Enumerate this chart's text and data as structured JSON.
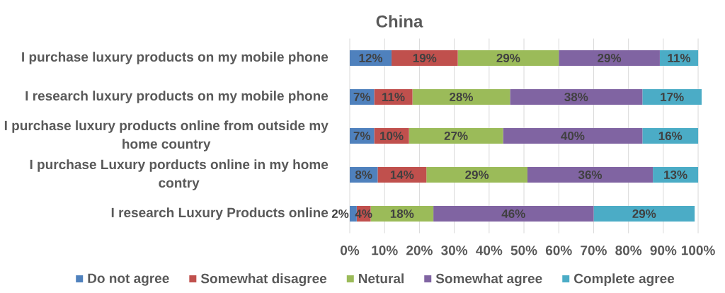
{
  "chart_data": {
    "type": "bar",
    "orientation": "horizontal",
    "stacked": true,
    "title": "China",
    "categories": [
      "I purchase luxury products on my mobile phone",
      "I research luxury products on my mobile phone",
      "I purchase luxury products online from outside my home country",
      "I purchase Luxury porducts online in my home contry",
      "I research Luxury Products online"
    ],
    "series": [
      {
        "name": "Do not agree",
        "color": "#4f81bd",
        "values": [
          12,
          7,
          7,
          8,
          2
        ],
        "value_labels": [
          "12%",
          "7%",
          "7%",
          "8%",
          "2%"
        ]
      },
      {
        "name": "Somewhat disagree",
        "color": "#c0504d",
        "values": [
          19,
          11,
          10,
          14,
          4
        ],
        "value_labels": [
          "19%",
          "11%",
          "10%",
          "14%",
          "4%"
        ]
      },
      {
        "name": "Netural",
        "color": "#9bbb59",
        "values": [
          29,
          28,
          27,
          29,
          18
        ],
        "value_labels": [
          "29%",
          "28%",
          "27%",
          "29%",
          "18%"
        ]
      },
      {
        "name": "Somewhat agree",
        "color": "#8064a2",
        "values": [
          29,
          38,
          40,
          36,
          46
        ],
        "value_labels": [
          "29%",
          "38%",
          "40%",
          "36%",
          "46%"
        ]
      },
      {
        "name": "Complete agree",
        "color": "#4bacc6",
        "values": [
          11,
          17,
          16,
          13,
          29
        ],
        "value_labels": [
          "11%",
          "17%",
          "16%",
          "13%",
          "29%"
        ]
      }
    ],
    "xlim": [
      0,
      101
    ],
    "xticks": [
      {
        "value": 0,
        "label": "0%"
      },
      {
        "value": 10,
        "label": "10%"
      },
      {
        "value": 20,
        "label": "20%"
      },
      {
        "value": 30,
        "label": "30%"
      },
      {
        "value": 40,
        "label": "40%"
      },
      {
        "value": 50,
        "label": "50%"
      },
      {
        "value": 60,
        "label": "60%"
      },
      {
        "value": 70,
        "label": "70%"
      },
      {
        "value": 80,
        "label": "80%"
      },
      {
        "value": 90,
        "label": "90%"
      },
      {
        "value": 100,
        "label": "100%"
      }
    ],
    "grid": "x",
    "legend": "bottom"
  }
}
